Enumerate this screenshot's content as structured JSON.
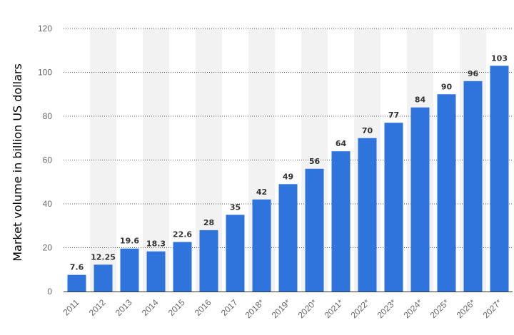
{
  "chart_data": {
    "type": "bar",
    "title": "",
    "xlabel": "",
    "ylabel": "Market volume in billion US dollars",
    "categories": [
      "2011",
      "2012",
      "2013",
      "2014",
      "2015",
      "2016",
      "2017",
      "2018*",
      "2019*",
      "2020*",
      "2021*",
      "2022*",
      "2023*",
      "2024*",
      "2025*",
      "2026*",
      "2027*"
    ],
    "values": [
      7.6,
      12.25,
      19.6,
      18.3,
      22.6,
      28,
      35,
      42,
      49,
      56,
      64,
      70,
      77,
      84,
      90,
      96,
      103
    ],
    "value_labels": [
      "7.6",
      "12.25",
      "19.6",
      "18.3",
      "22.6",
      "28",
      "35",
      "42",
      "49",
      "56",
      "64",
      "70",
      "77",
      "84",
      "90",
      "96",
      "103"
    ],
    "ylim": [
      0,
      120
    ],
    "yticks": [
      "0",
      "20",
      "40",
      "60",
      "80",
      "100",
      "120"
    ],
    "grid": true,
    "legend": "none",
    "colors": {
      "bar": "#2f74dd",
      "band": "#f2f2f2",
      "grid": "#555555"
    }
  }
}
